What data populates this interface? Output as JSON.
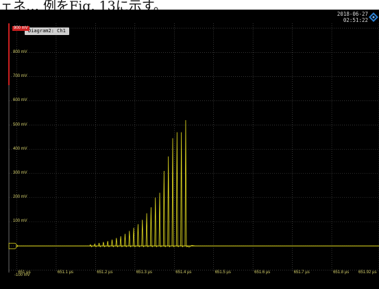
{
  "caption": "ェネ… 例をFig. 13に示す。",
  "datetime": {
    "date": "2018-06-27",
    "time": "02:51:22"
  },
  "diagram_tab": "Diagram2: Ch1",
  "colors": {
    "trace": "#e8e020",
    "grid": "#5a5a5a",
    "axis_text": "#d4cf6a",
    "marker_red": "#cc2020",
    "baseline_marker": "#e8e020"
  },
  "icons": {
    "brand_logo": "rs-diamond-logo-icon",
    "channel_marker": "channel-offset-marker-icon"
  },
  "chart_data": {
    "type": "line",
    "title": "",
    "xlabel": "",
    "ylabel": "",
    "y_tick_labels": [
      "900 mV",
      "800 mV",
      "700 mV",
      "600 mV",
      "500 mV",
      "400 mV",
      "300 mV",
      "200 mV",
      "100 mV",
      "-100 mV"
    ],
    "y_ticks": [
      900,
      800,
      700,
      600,
      500,
      400,
      300,
      200,
      100,
      -100
    ],
    "x_tick_labels": [
      "651 µs",
      "651.1 µs",
      "651.2 µs",
      "651.3 µs",
      "651.4 µs",
      "651.5 µs",
      "651.6 µs",
      "651.7 µs",
      "651.8 µs",
      "651.92 µs"
    ],
    "x_ticks": [
      651.0,
      651.1,
      651.2,
      651.3,
      651.4,
      651.5,
      651.6,
      651.7,
      651.8,
      651.92
    ],
    "xlim": [
      650.98,
      651.92
    ],
    "ylim": [
      -110,
      920
    ],
    "grid": true,
    "baseline": 0,
    "series": [
      {
        "pulse_times": [
          651.187,
          651.198,
          651.209,
          651.22,
          651.231,
          651.242,
          651.253,
          651.264,
          651.275,
          651.286,
          651.297,
          651.308,
          651.319,
          651.33,
          651.341,
          651.352,
          651.363,
          651.374,
          651.385,
          651.396,
          651.407,
          651.418,
          651.429
        ],
        "pulse_peaks": [
          5,
          8,
          12,
          16,
          20,
          26,
          33,
          40,
          50,
          62,
          75,
          90,
          108,
          135,
          160,
          200,
          220,
          310,
          370,
          445,
          470,
          470,
          520
        ]
      }
    ]
  }
}
